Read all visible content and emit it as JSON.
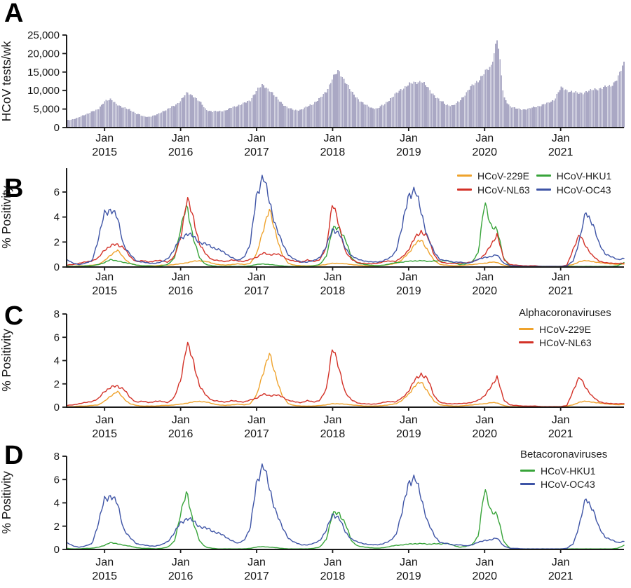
{
  "chart_data": {
    "type": "multi-panel",
    "x": {
      "month_label": "Jan",
      "years": [
        "2015",
        "2016",
        "2017",
        "2018",
        "2019",
        "2020",
        "2021"
      ],
      "start": "2014-07",
      "end": "2021-11",
      "months": 89
    },
    "axis_color": "#1a1a1a",
    "series": {
      "tests": {
        "name": "HCoV tests/wk",
        "color": "#AAA8C4",
        "values": [
          1900,
          2300,
          2800,
          3600,
          4300,
          4900,
          7300,
          7500,
          6300,
          5300,
          4800,
          3800,
          3100,
          2900,
          3300,
          4200,
          5000,
          5900,
          7300,
          9400,
          8600,
          7000,
          4900,
          4300,
          4400,
          4600,
          5300,
          6000,
          6600,
          7300,
          10200,
          11400,
          10300,
          8200,
          6600,
          5300,
          4700,
          4800,
          5600,
          6600,
          7800,
          9800,
          13500,
          15300,
          12500,
          9500,
          7800,
          6300,
          5400,
          5100,
          6100,
          7600,
          9100,
          10600,
          11600,
          12200,
          12600,
          10800,
          8800,
          7200,
          6200,
          5900,
          7100,
          9200,
          11200,
          12800,
          14800,
          16500,
          24500,
          8200,
          5800,
          5100,
          4900,
          5100,
          5600,
          6100,
          6600,
          7600,
          10700,
          10100,
          9600,
          9200,
          9700,
          10100,
          10600,
          10900,
          11300,
          13500,
          17200
        ]
      },
      "HCoV-229E": {
        "color": "#EFA32D",
        "values": [
          0.05,
          0.05,
          0.1,
          0.1,
          0.15,
          0.2,
          0.5,
          1.0,
          1.35,
          0.75,
          0.3,
          0.15,
          0.1,
          0.1,
          0.1,
          0.15,
          0.15,
          0.2,
          0.25,
          0.35,
          0.45,
          0.5,
          0.45,
          0.3,
          0.2,
          0.15,
          0.2,
          0.25,
          0.2,
          0.3,
          1.0,
          3.0,
          4.5,
          2.8,
          1.0,
          0.3,
          0.15,
          0.1,
          0.1,
          0.1,
          0.15,
          0.2,
          0.3,
          0.3,
          0.25,
          0.2,
          0.15,
          0.1,
          0.1,
          0.1,
          0.15,
          0.2,
          0.3,
          0.6,
          1.1,
          1.9,
          2.1,
          1.4,
          0.5,
          0.2,
          0.15,
          0.1,
          0.1,
          0.15,
          0.2,
          0.25,
          0.3,
          0.4,
          0.35,
          0.15,
          0.05,
          0.05,
          0.05,
          0.05,
          0.05,
          0.05,
          0.05,
          0.05,
          0.05,
          0.1,
          0.2,
          0.45,
          0.5,
          0.45,
          0.35,
          0.3,
          0.25,
          0.2,
          0.25
        ]
      },
      "HCoV-NL63": {
        "color": "#D33127",
        "values": [
          0.15,
          0.2,
          0.3,
          0.4,
          0.5,
          0.7,
          1.4,
          1.7,
          1.8,
          1.6,
          0.8,
          0.45,
          0.5,
          0.4,
          0.5,
          0.5,
          0.4,
          0.8,
          2.4,
          5.4,
          4.0,
          1.8,
          1.0,
          0.6,
          0.5,
          0.45,
          0.55,
          0.5,
          0.45,
          0.6,
          0.8,
          1.1,
          1.0,
          1.05,
          0.9,
          0.6,
          0.45,
          0.4,
          0.55,
          0.45,
          0.6,
          1.5,
          5.4,
          3.2,
          1.3,
          0.6,
          0.35,
          0.3,
          0.25,
          0.3,
          0.4,
          0.5,
          0.45,
          0.8,
          1.4,
          2.3,
          2.9,
          2.4,
          1.0,
          0.4,
          0.3,
          0.3,
          0.3,
          0.35,
          0.4,
          0.6,
          1.0,
          1.7,
          2.7,
          0.6,
          0.2,
          0.15,
          0.1,
          0.1,
          0.1,
          0.05,
          0.05,
          0.05,
          0.05,
          0.15,
          1.5,
          2.55,
          1.7,
          0.9,
          0.5,
          0.35,
          0.3,
          0.3,
          0.3
        ]
      },
      "HCoV-HKU1": {
        "color": "#38A43A",
        "values": [
          0.1,
          0.05,
          0.05,
          0.1,
          0.1,
          0.2,
          0.35,
          0.6,
          0.5,
          0.35,
          0.3,
          0.15,
          0.1,
          0.1,
          0.05,
          0.1,
          0.2,
          0.7,
          3.0,
          5.0,
          2.3,
          0.7,
          0.2,
          0.1,
          0.05,
          0.05,
          0.05,
          0.05,
          0.05,
          0.1,
          0.2,
          0.25,
          0.2,
          0.15,
          0.1,
          0.05,
          0.05,
          0.05,
          0.05,
          0.1,
          0.2,
          0.9,
          3.0,
          3.2,
          2.2,
          0.7,
          0.3,
          0.2,
          0.15,
          0.1,
          0.15,
          0.25,
          0.35,
          0.4,
          0.45,
          0.5,
          0.5,
          0.45,
          0.5,
          0.45,
          0.55,
          0.35,
          0.2,
          0.25,
          0.4,
          1.2,
          5.1,
          3.4,
          2.9,
          0.7,
          0.1,
          0.05,
          0.05,
          0.05,
          0.05,
          0.05,
          0.05,
          0.05,
          0.05,
          0.05,
          0.05,
          0.05,
          0.05,
          0.05,
          0.05,
          0.05,
          0.05,
          0.1,
          0.35
        ]
      },
      "HCoV-OC43": {
        "color": "#3E54A6",
        "values": [
          0.6,
          0.3,
          0.2,
          0.3,
          0.5,
          2.2,
          4.3,
          4.7,
          3.9,
          1.8,
          1.0,
          0.5,
          0.4,
          0.3,
          0.3,
          0.4,
          0.7,
          1.4,
          2.3,
          2.7,
          2.4,
          2.0,
          1.8,
          1.6,
          1.4,
          1.1,
          0.8,
          0.5,
          0.8,
          1.8,
          5.8,
          7.4,
          5.2,
          3.4,
          1.9,
          1.0,
          0.6,
          0.4,
          0.4,
          0.5,
          0.8,
          1.6,
          3.1,
          2.7,
          1.5,
          0.9,
          0.6,
          0.5,
          0.4,
          0.4,
          0.5,
          0.7,
          1.3,
          3.2,
          5.9,
          6.1,
          4.4,
          2.4,
          1.2,
          0.6,
          0.5,
          0.4,
          0.4,
          0.3,
          0.4,
          0.6,
          0.8,
          0.8,
          1.0,
          0.3,
          0.1,
          0.1,
          0.05,
          0.05,
          0.05,
          0.05,
          0.05,
          0.05,
          0.05,
          0.1,
          0.5,
          2.2,
          4.4,
          3.6,
          1.9,
          1.1,
          0.8,
          0.6,
          0.7
        ]
      }
    },
    "panels": [
      {
        "panel_label": "A",
        "type": "bar",
        "ylabel": "HCoV tests/wk",
        "ytick_labels": [
          "0",
          "5,000",
          "10,000",
          "15,000",
          "20,000",
          "25,000"
        ],
        "ytick_values": [
          0,
          5000,
          10000,
          15000,
          20000,
          25000
        ],
        "series": [
          "tests"
        ]
      },
      {
        "panel_label": "B",
        "type": "line",
        "ylabel": "% Positivity",
        "ytick_labels": [
          "0",
          "2",
          "4",
          "6"
        ],
        "ytick_values": [
          0,
          2,
          4,
          6
        ],
        "series": [
          "HCoV-229E",
          "HCoV-HKU1",
          "HCoV-NL63",
          "HCoV-OC43"
        ],
        "legend": {
          "entries": [
            "HCoV-229E",
            "HCoV-NL63",
            "HCoV-HKU1",
            "HCoV-OC43"
          ]
        }
      },
      {
        "panel_label": "C",
        "type": "line",
        "ylabel": "% Positivity",
        "ytick_labels": [
          "0",
          "2",
          "4",
          "6",
          "8"
        ],
        "ytick_values": [
          0,
          2,
          4,
          6,
          8
        ],
        "series": [
          "HCoV-229E",
          "HCoV-NL63"
        ],
        "legend": {
          "title": "Alphacoronaviruses",
          "entries": [
            "HCoV-229E",
            "HCoV-NL63"
          ]
        }
      },
      {
        "panel_label": "D",
        "type": "line",
        "ylabel": "% Positivity",
        "ytick_labels": [
          "0",
          "2",
          "4",
          "6",
          "8"
        ],
        "ytick_values": [
          0,
          2,
          4,
          6,
          8
        ],
        "series": [
          "HCoV-HKU1",
          "HCoV-OC43"
        ],
        "legend": {
          "title": "Betacoronaviruses",
          "entries": [
            "HCoV-HKU1",
            "HCoV-OC43"
          ]
        }
      }
    ]
  }
}
